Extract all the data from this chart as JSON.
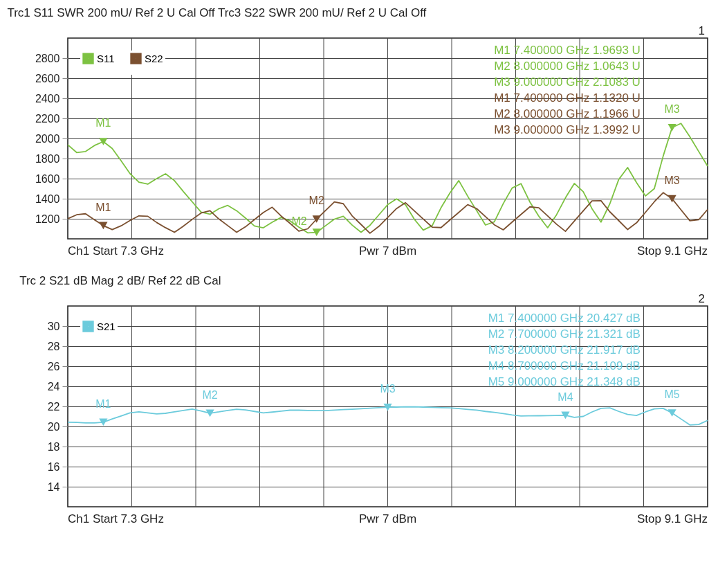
{
  "chart_data": [
    {
      "type": "line",
      "title": "Trc1 S11 SWR 200 mU/ Ref 2 U   Cal Off   Trc3 S22 SWR 200 mU/ Ref 2 U   Cal Off",
      "categories": [
        null,
        null,
        null,
        null,
        null,
        null,
        null,
        null,
        null,
        null,
        null,
        null,
        null,
        null,
        null,
        null,
        null,
        null,
        null,
        null,
        null,
        null,
        null,
        null,
        null,
        null,
        null,
        null,
        null,
        null,
        null,
        null,
        null,
        null,
        null,
        null,
        null,
        null,
        null,
        null,
        null,
        null,
        null,
        null,
        null,
        null,
        null,
        null,
        null,
        null,
        null,
        null,
        null,
        null,
        null,
        null,
        null,
        null,
        null,
        null,
        null,
        null,
        null,
        null,
        null,
        null,
        null,
        null,
        null,
        null,
        null,
        null,
        null
      ],
      "ylim": [
        1000,
        3000
      ],
      "yticks": [
        1200,
        1400,
        1600,
        1800,
        2000,
        2200,
        2400,
        2600,
        2800
      ],
      "grid": true,
      "legend": "top left",
      "tick_labels": "y",
      "series": [
        {
          "name": "S11",
          "color": "#7dc242",
          "values": [
            1937,
            1860,
            1870,
            1930,
            1969.3,
            1900,
            1777,
            1650,
            1564,
            1545,
            1600,
            1648,
            1580,
            1472,
            1369,
            1267,
            1245,
            1300,
            1333,
            1280,
            1207,
            1128,
            1110,
            1165,
            1213,
            1180,
            1118,
            1060,
            1064.3,
            1130,
            1196,
            1225,
            1137,
            1066,
            1135,
            1238,
            1341,
            1398,
            1340,
            1195,
            1087,
            1130,
            1310,
            1457,
            1580,
            1425,
            1282,
            1138,
            1170,
            1351,
            1506,
            1550,
            1367,
            1226,
            1110,
            1240,
            1408,
            1552,
            1470,
            1299,
            1167,
            1350,
            1592,
            1710,
            1560,
            1427,
            1500,
            1825,
            2108.3,
            2150,
            2017,
            1870,
            1724
          ]
        },
        {
          "name": "S22",
          "color": "#7b5030",
          "values": [
            1201,
            1240,
            1250,
            1190,
            1132,
            1092,
            1130,
            1183,
            1229,
            1225,
            1163,
            1111,
            1065,
            1126,
            1194,
            1257,
            1280,
            1198,
            1132,
            1066,
            1120,
            1191,
            1262,
            1315,
            1228,
            1155,
            1077,
            1100,
            1196.6,
            1282,
            1368,
            1350,
            1229,
            1143,
            1056,
            1124,
            1213,
            1302,
            1360,
            1278,
            1197,
            1117,
            1112,
            1188,
            1264,
            1341,
            1302,
            1222,
            1140,
            1090,
            1167,
            1243,
            1319,
            1310,
            1229,
            1146,
            1075,
            1177,
            1278,
            1378,
            1380,
            1269,
            1181,
            1093,
            1160,
            1264,
            1369,
            1460,
            1399.2,
            1290,
            1180,
            1190,
            1293
          ]
        }
      ],
      "annotations": [
        "M1 7.400000 GHz 1.9693 U",
        "M2 8.000000 GHz 1.0643 U",
        "M3 9.000000 GHz 2.1083 U",
        "M1 7.400000 GHz 1.1320 U",
        "M2 8.000000 GHz 1.1966 U",
        "M3 9.000000 GHz 1.3992 U",
        "Ch1   Start 7.3 GHz",
        "Pwr 7 dBm",
        "Stop 9.1 GHz",
        "1",
        {
          "text": "M1",
          "y": 1969.3
        },
        {
          "text": "M2",
          "y": 1064.3
        },
        {
          "text": "M3",
          "y": 2108.3
        },
        {
          "text": "M1",
          "y": 1132
        },
        {
          "text": "M2",
          "y": 1196.6
        },
        {
          "text": "M3",
          "y": 1399.2
        }
      ]
    },
    {
      "type": "line",
      "title": "Trc 2 S21 dB Mag 2 dB/ Ref 22 dB  Cal",
      "categories": [
        null,
        null,
        null,
        null,
        null,
        null,
        null,
        null,
        null,
        null,
        null,
        null,
        null,
        null,
        null,
        null,
        null,
        null,
        null,
        null,
        null,
        null,
        null,
        null,
        null,
        null,
        null,
        null,
        null,
        null,
        null,
        null,
        null,
        null,
        null,
        null,
        null,
        null,
        null,
        null,
        null,
        null,
        null,
        null,
        null,
        null,
        null,
        null,
        null,
        null,
        null,
        null,
        null,
        null,
        null,
        null,
        null,
        null,
        null,
        null,
        null,
        null,
        null,
        null,
        null,
        null,
        null,
        null,
        null,
        null,
        null,
        null,
        null
      ],
      "ylim": [
        12,
        32
      ],
      "yticks": [
        14,
        16,
        18,
        20,
        22,
        24,
        26,
        28,
        30
      ],
      "grid": true,
      "legend": "top left",
      "tick_labels": "y",
      "series": [
        {
          "name": "S21",
          "color": "#6ccbdc",
          "values": [
            20.42,
            20.4,
            20.36,
            20.36,
            20.427,
            20.75,
            21.05,
            21.36,
            21.45,
            21.35,
            21.25,
            21.31,
            21.45,
            21.6,
            21.74,
            21.55,
            21.321,
            21.45,
            21.6,
            21.72,
            21.65,
            21.5,
            21.35,
            21.43,
            21.52,
            21.62,
            21.62,
            21.6,
            21.58,
            21.58,
            21.63,
            21.68,
            21.72,
            21.77,
            21.82,
            21.87,
            21.917,
            21.93,
            21.95,
            21.95,
            21.93,
            21.9,
            21.87,
            21.85,
            21.78,
            21.7,
            21.63,
            21.5,
            21.4,
            21.28,
            21.15,
            21.05,
            21.06,
            21.07,
            21.08,
            21.1,
            21.109,
            20.9,
            21.0,
            21.45,
            21.8,
            21.85,
            21.5,
            21.2,
            21.1,
            21.45,
            21.75,
            21.8,
            21.348,
            20.75,
            20.15,
            20.2,
            20.6
          ]
        }
      ],
      "annotations": [
        "M1 7.400000 GHz 20.427 dB",
        "M2 7.700000 GHz 21.321 dB",
        "M3 8.200000 GHz 21.917 dB",
        "M4 8.700000 GHz 21.109 dB",
        "M5 9.000000 GHz 21.348 dB",
        "Ch1   Start 7.3 GHz",
        "Pwr 7 dBm",
        "Stop 9.1 GHz",
        "2",
        {
          "text": "M1",
          "y": 20.427
        },
        {
          "text": "M2",
          "y": 21.321
        },
        {
          "text": "M3",
          "y": 21.917
        },
        {
          "text": "M4",
          "y": 21.109
        },
        {
          "text": "M5",
          "y": 21.348
        }
      ]
    }
  ]
}
